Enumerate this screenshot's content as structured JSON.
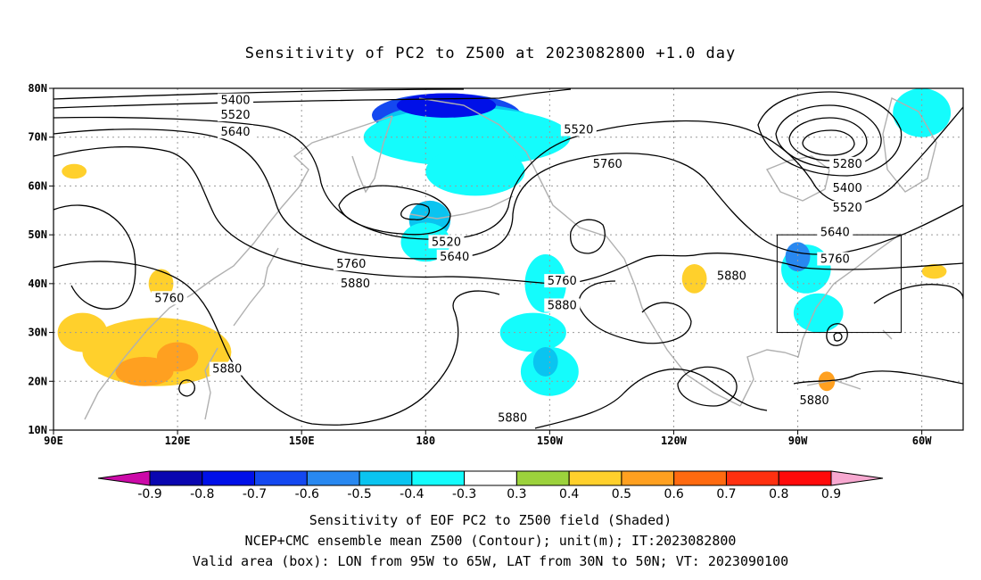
{
  "title": "Sensitivity of PC2 to Z500 at 2023082800 +1.0 day",
  "captions": [
    "Sensitivity of EOF PC2 to Z500 field (Shaded)",
    "NCEP+CMC ensemble mean Z500 (Contour); unit(m); IT:2023082800",
    "Valid area (box): LON from 95W to 65W, LAT from 30N to 50N; VT: 2023090100"
  ],
  "map": {
    "lon_range": [
      90,
      310
    ],
    "lat_range": [
      10,
      80
    ],
    "lat_ticks": [
      {
        "lat": 80,
        "label": "80N"
      },
      {
        "lat": 70,
        "label": "70N"
      },
      {
        "lat": 60,
        "label": "60N"
      },
      {
        "lat": 50,
        "label": "50N"
      },
      {
        "lat": 40,
        "label": "40N"
      },
      {
        "lat": 30,
        "label": "30N"
      },
      {
        "lat": 20,
        "label": "20N"
      },
      {
        "lat": 10,
        "label": "10N"
      }
    ],
    "lon_ticks": [
      {
        "lon": 90,
        "label": "90E"
      },
      {
        "lon": 120,
        "label": "120E"
      },
      {
        "lon": 150,
        "label": "150E"
      },
      {
        "lon": 180,
        "label": "180"
      },
      {
        "lon": 210,
        "label": "150W"
      },
      {
        "lon": 240,
        "label": "120W"
      },
      {
        "lon": 270,
        "label": "90W"
      },
      {
        "lon": 300,
        "label": "60W"
      }
    ],
    "valid_box": {
      "lon": [
        265,
        295
      ],
      "lat": [
        30,
        50
      ]
    },
    "contour_labels": [
      {
        "text": "5400",
        "lon": 134,
        "lat": 77.5
      },
      {
        "text": "5520",
        "lon": 134,
        "lat": 74.5
      },
      {
        "text": "5640",
        "lon": 134,
        "lat": 71.0
      },
      {
        "text": "5520",
        "lon": 217,
        "lat": 71.5
      },
      {
        "text": "5760",
        "lon": 224,
        "lat": 64.5
      },
      {
        "text": "5280",
        "lon": 282,
        "lat": 64.5
      },
      {
        "text": "5400",
        "lon": 282,
        "lat": 59.5
      },
      {
        "text": "5520",
        "lon": 282,
        "lat": 55.5
      },
      {
        "text": "5640",
        "lon": 279,
        "lat": 50.5
      },
      {
        "text": "5760",
        "lon": 279,
        "lat": 45.0
      },
      {
        "text": "5880",
        "lon": 254,
        "lat": 41.5
      },
      {
        "text": "5520",
        "lon": 185,
        "lat": 48.5
      },
      {
        "text": "5640",
        "lon": 187,
        "lat": 45.5
      },
      {
        "text": "5760",
        "lon": 162,
        "lat": 44.0
      },
      {
        "text": "5880",
        "lon": 163,
        "lat": 40.0
      },
      {
        "text": "5760",
        "lon": 213,
        "lat": 40.5
      },
      {
        "text": "5880",
        "lon": 213,
        "lat": 35.5
      },
      {
        "text": "5760",
        "lon": 118,
        "lat": 37.0
      },
      {
        "text": "5880",
        "lon": 132,
        "lat": 22.5
      },
      {
        "text": "5880",
        "lon": 201,
        "lat": 12.5
      },
      {
        "text": "5880",
        "lon": 274,
        "lat": 16.0
      }
    ],
    "shaded_regions": [
      {
        "lon": 185,
        "lat": 74.5,
        "rlon": 18,
        "rlat": 4.5,
        "value": -0.7
      },
      {
        "lon": 188,
        "lat": 72.0,
        "rlon": 20,
        "rlat": 5,
        "value": -0.5
      },
      {
        "lon": 190,
        "lat": 70.0,
        "rlon": 25,
        "rlat": 6,
        "value": -0.4
      },
      {
        "lon": 185,
        "lat": 76.5,
        "rlon": 12,
        "rlat": 2.5,
        "value": -0.8
      },
      {
        "lon": 192,
        "lat": 63.0,
        "rlon": 12,
        "rlat": 5,
        "value": -0.4
      },
      {
        "lon": 181,
        "lat": 53.0,
        "rlon": 5,
        "rlat": 4,
        "value": -0.5
      },
      {
        "lon": 180,
        "lat": 48.5,
        "rlon": 6,
        "rlat": 4,
        "value": -0.4
      },
      {
        "lon": 209,
        "lat": 40.0,
        "rlon": 5,
        "rlat": 6,
        "value": -0.4
      },
      {
        "lon": 206,
        "lat": 30.0,
        "rlon": 8,
        "rlat": 4,
        "value": -0.4
      },
      {
        "lon": 210,
        "lat": 22.0,
        "rlon": 7,
        "rlat": 5,
        "value": -0.4
      },
      {
        "lon": 209,
        "lat": 24.0,
        "rlon": 3,
        "rlat": 3,
        "value": -0.5
      },
      {
        "lon": 272,
        "lat": 43.0,
        "rlon": 6,
        "rlat": 5,
        "value": -0.4
      },
      {
        "lon": 270,
        "lat": 45.5,
        "rlon": 3,
        "rlat": 3,
        "value": -0.6
      },
      {
        "lon": 275,
        "lat": 34.0,
        "rlon": 6,
        "rlat": 4,
        "value": -0.4
      },
      {
        "lon": 300,
        "lat": 75.0,
        "rlon": 7,
        "rlat": 5,
        "value": -0.4
      },
      {
        "lon": 245,
        "lat": 41.0,
        "rlon": 3,
        "rlat": 3,
        "value": 0.4
      },
      {
        "lon": 116,
        "lat": 40.0,
        "rlon": 3,
        "rlat": 3,
        "value": 0.4
      },
      {
        "lon": 115,
        "lat": 26.0,
        "rlon": 18,
        "rlat": 7,
        "value": 0.4
      },
      {
        "lon": 112,
        "lat": 22.0,
        "rlon": 7,
        "rlat": 3,
        "value": 0.5
      },
      {
        "lon": 120,
        "lat": 25.0,
        "rlon": 5,
        "rlat": 3,
        "value": 0.5
      },
      {
        "lon": 97,
        "lat": 30.0,
        "rlon": 6,
        "rlat": 4,
        "value": 0.4
      },
      {
        "lon": 95,
        "lat": 63.0,
        "rlon": 3,
        "rlat": 1.5,
        "value": 0.4
      },
      {
        "lon": 303,
        "lat": 42.5,
        "rlon": 3,
        "rlat": 1.5,
        "value": 0.4
      },
      {
        "lon": 277,
        "lat": 20.0,
        "rlon": 2,
        "rlat": 2,
        "value": 0.5
      }
    ]
  },
  "colorbar": {
    "labels": [
      "-0.9",
      "-0.8",
      "-0.7",
      "-0.6",
      "-0.5",
      "-0.4",
      "-0.3",
      "0.3",
      "0.4",
      "0.5",
      "0.6",
      "0.7",
      "0.8",
      "0.9"
    ],
    "colors": [
      "#0a06b0",
      "#0010e8",
      "#1448f0",
      "#2888f0",
      "#0ac4f0",
      "#14fcfc",
      "#ffffff",
      "#9cd23c",
      "#ffd02c",
      "#ffa020",
      "#ff6a10",
      "#ff3010",
      "#ff0a0a"
    ],
    "low_end_color": "#cc0aa8",
    "high_end_color": "#f7a8d0"
  },
  "colors": {
    "contour": "#000000",
    "coastline": "#b0b0b0",
    "grid": "#9a9a9a"
  }
}
